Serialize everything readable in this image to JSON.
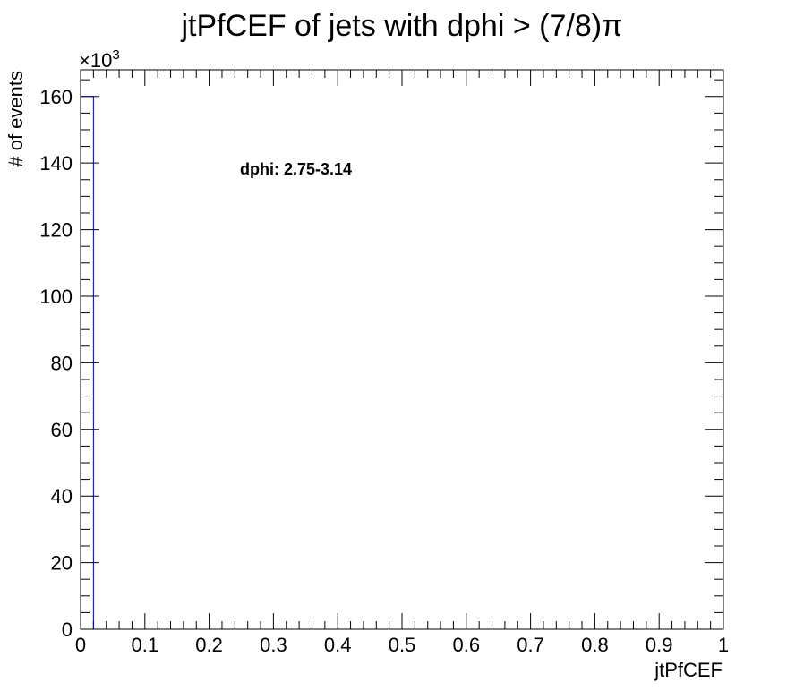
{
  "chart_data": {
    "type": "bar",
    "title": "jtPfCEF of jets with dphi > (7/8)π",
    "xlabel": "jtPfCEF",
    "ylabel": "# of events",
    "y_exponent_label": "×10",
    "y_exponent_power": "3",
    "annotation": "dphi: 2.75-3.14",
    "xlim": [
      0,
      1
    ],
    "ylim": [
      0,
      168
    ],
    "x_ticks": [
      0,
      0.1,
      0.2,
      0.3,
      0.4,
      0.5,
      0.6,
      0.7,
      0.8,
      0.9,
      1
    ],
    "x_tick_labels": [
      "0",
      "0.1",
      "0.2",
      "0.3",
      "0.4",
      "0.5",
      "0.6",
      "0.7",
      "0.8",
      "0.9",
      "1"
    ],
    "y_ticks": [
      0,
      20,
      40,
      60,
      80,
      100,
      120,
      140,
      160
    ],
    "y_tick_labels": [
      "0",
      "20",
      "40",
      "60",
      "80",
      "100",
      "120",
      "140",
      "160"
    ],
    "bin_width": 0.02,
    "bins": [
      {
        "x0": 0,
        "x1": 0.02,
        "value": 160
      }
    ],
    "series_color": "#00008b",
    "grid": false,
    "legend": "none"
  }
}
